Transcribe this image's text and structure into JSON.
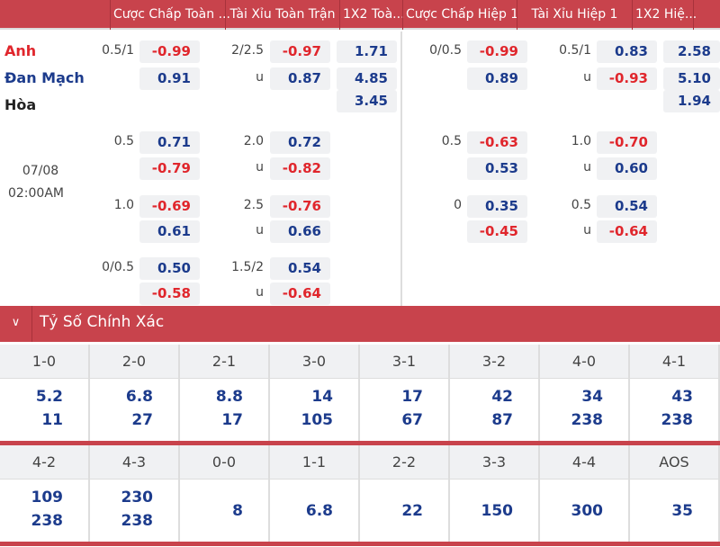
{
  "header": {
    "columns": [
      "Cược Chấp Toàn ...",
      "Tài Xỉu Toàn Trận",
      "1X2 Toà...",
      "Cược Chấp Hiệp 1",
      "Tài Xỉu Hiệp 1",
      "1X2 Hiệ..."
    ]
  },
  "match": {
    "home": "Anh",
    "away": "Đan Mạch",
    "draw": "Hòa",
    "date": "07/08",
    "time": "02:00AM",
    "main": {
      "hdp_full": {
        "line": "0.5/1",
        "home": "-0.99",
        "away": "0.91"
      },
      "ou_full": {
        "line": "2/2.5",
        "under_label": "u",
        "over": "-0.97",
        "under": "0.87"
      },
      "x12_full": [
        "1.71",
        "4.85",
        "3.45"
      ],
      "hdp_half": {
        "line": "0/0.5",
        "home": "-0.99",
        "away": "0.89"
      },
      "ou_half": {
        "line": "0.5/1",
        "under_label": "u",
        "over": "0.83",
        "under": "-0.93"
      },
      "x12_half": [
        "2.58",
        "5.10",
        "1.94"
      ]
    },
    "alt": [
      {
        "hdp_full": {
          "line": "0.5",
          "home": "0.71",
          "away": "-0.79"
        },
        "ou_full": {
          "line": "2.0",
          "under_label": "u",
          "over": "0.72",
          "under": "-0.82"
        },
        "hdp_half": {
          "line": "0.5",
          "home": "-0.63",
          "away": "0.53"
        },
        "ou_half": {
          "line": "1.0",
          "under_label": "u",
          "over": "-0.70",
          "under": "0.60"
        }
      },
      {
        "hdp_full": {
          "line": "1.0",
          "home": "-0.69",
          "away": "0.61"
        },
        "ou_full": {
          "line": "2.5",
          "under_label": "u",
          "over": "-0.76",
          "under": "0.66"
        },
        "hdp_half": {
          "line": "0",
          "home": "0.35",
          "away": "-0.45"
        },
        "ou_half": {
          "line": "0.5",
          "under_label": "u",
          "over": "0.54",
          "under": "-0.64"
        }
      },
      {
        "hdp_full": {
          "line": "0/0.5",
          "home": "0.50",
          "away": "-0.58"
        },
        "ou_full": {
          "line": "1.5/2",
          "under_label": "u",
          "over": "0.54",
          "under": "-0.64"
        }
      }
    ]
  },
  "correct_score": {
    "title": "Tỷ Số Chính Xác",
    "rows": [
      [
        {
          "score": "1-0",
          "odds": [
            "5.2",
            "11"
          ]
        },
        {
          "score": "2-0",
          "odds": [
            "6.8",
            "27"
          ]
        },
        {
          "score": "2-1",
          "odds": [
            "8.8",
            "17"
          ]
        },
        {
          "score": "3-0",
          "odds": [
            "14",
            "105"
          ]
        },
        {
          "score": "3-1",
          "odds": [
            "17",
            "67"
          ]
        },
        {
          "score": "3-2",
          "odds": [
            "42",
            "87"
          ]
        },
        {
          "score": "4-0",
          "odds": [
            "34",
            "238"
          ]
        },
        {
          "score": "4-1",
          "odds": [
            "43",
            "238"
          ]
        }
      ],
      [
        {
          "score": "4-2",
          "odds": [
            "109",
            "238"
          ]
        },
        {
          "score": "4-3",
          "odds": [
            "230",
            "238"
          ]
        },
        {
          "score": "0-0",
          "odds": [
            "8"
          ]
        },
        {
          "score": "1-1",
          "odds": [
            "6.8"
          ]
        },
        {
          "score": "2-2",
          "odds": [
            "22"
          ]
        },
        {
          "score": "3-3",
          "odds": [
            "150"
          ]
        },
        {
          "score": "4-4",
          "odds": [
            "300"
          ]
        },
        {
          "score": "AOS",
          "odds": [
            "35"
          ]
        }
      ]
    ]
  },
  "colors": {
    "header": "#c8434c",
    "positive": "#1c3b8c",
    "negative": "#e0262c"
  }
}
